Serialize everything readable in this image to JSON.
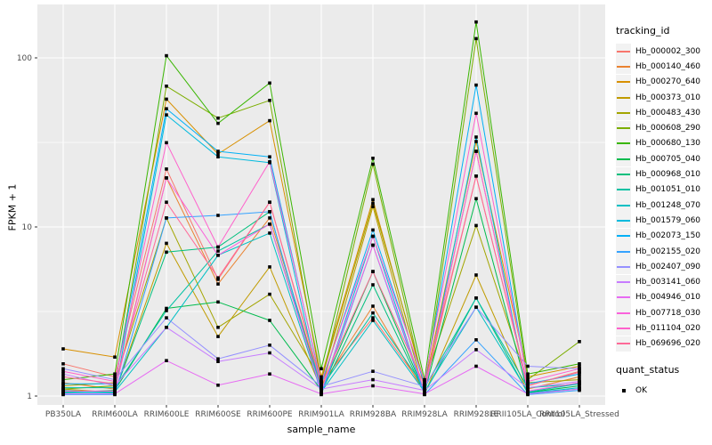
{
  "chart_data": {
    "type": "line",
    "title": "",
    "xlabel": "sample_name",
    "ylabel": "FPKM + 1",
    "y_scale": "log10",
    "y_ticks": [
      1,
      10,
      100
    ],
    "y_minor": [
      3.162,
      31.62
    ],
    "ylim": [
      1,
      195
    ],
    "grid": true,
    "legend_position": "right",
    "legend_title": "tracking_id",
    "panel_bg": "#EBEBEB",
    "grid_color": "#FFFFFF",
    "tick_label_color": "#4D4D4D",
    "point_color": "#000000",
    "point_shape": "square",
    "categories": [
      "PB350LA",
      "RRIM600LA",
      "RRIM600LE",
      "RRIM600SE",
      "RRIM600PE",
      "RRIM901LA",
      "RRIM928BA",
      "RRIM928LA",
      "RRIM928LE",
      "RRII105LA_Control",
      "RRII105LA_Stressed"
    ],
    "series": [
      {
        "name": "Hb_000002_300",
        "color": "#F8766D",
        "values": [
          1.55,
          1.3,
          22,
          4.9,
          14,
          1.2,
          2.9,
          1.1,
          20,
          1.15,
          1.4
        ]
      },
      {
        "name": "Hb_000140_460",
        "color": "#EA8331",
        "values": [
          1.2,
          1.1,
          19.5,
          4.6,
          11.3,
          1.15,
          3.4,
          1.05,
          28,
          1.1,
          1.3
        ]
      },
      {
        "name": "Hb_000270_640",
        "color": "#D89000",
        "values": [
          1.9,
          1.7,
          57,
          27,
          42.5,
          1.3,
          14.5,
          1.15,
          32,
          1.3,
          1.5
        ]
      },
      {
        "name": "Hb_000373_010",
        "color": "#C09B00",
        "values": [
          1.1,
          1.05,
          8.0,
          2.25,
          5.8,
          1.1,
          13.2,
          1.03,
          5.2,
          1.05,
          1.2
        ]
      },
      {
        "name": "Hb_000483_430",
        "color": "#A3A500",
        "values": [
          1.15,
          1.2,
          11.3,
          2.55,
          4.0,
          1.25,
          13.8,
          1.2,
          10.2,
          1.2,
          1.25
        ]
      },
      {
        "name": "Hb_000608_290",
        "color": "#7CAE00",
        "values": [
          1.1,
          1.15,
          68,
          44,
          56,
          1.2,
          23.5,
          1.1,
          130,
          1.25,
          2.1
        ]
      },
      {
        "name": "Hb_000680_130",
        "color": "#39B600",
        "values": [
          1.25,
          1.35,
          103,
          41,
          71,
          1.45,
          25.5,
          1.25,
          163,
          1.35,
          1.55
        ]
      },
      {
        "name": "Hb_000705_040",
        "color": "#00BB4E",
        "values": [
          1.05,
          1.08,
          3.3,
          3.6,
          2.8,
          1.08,
          5.45,
          1.05,
          14.7,
          1.05,
          1.15
        ]
      },
      {
        "name": "Hb_000968_010",
        "color": "#00BF7D",
        "values": [
          1.08,
          1.05,
          7.1,
          7.6,
          12.3,
          1.05,
          4.55,
          1.04,
          3.8,
          1.04,
          1.1
        ]
      },
      {
        "name": "Hb_001051_010",
        "color": "#00C1A3",
        "values": [
          1.12,
          1.12,
          3.2,
          7.2,
          10.4,
          1.12,
          3.1,
          1.12,
          3.8,
          1.12,
          1.18
        ]
      },
      {
        "name": "Hb_001248_070",
        "color": "#00BFC4",
        "values": [
          1.06,
          1.06,
          2.55,
          6.8,
          9.2,
          1.06,
          2.8,
          1.06,
          3.35,
          1.06,
          1.18
        ]
      },
      {
        "name": "Hb_001579_060",
        "color": "#00BADE",
        "values": [
          1.04,
          1.04,
          46,
          26,
          24,
          1.04,
          8.8,
          1.04,
          34,
          1.04,
          1.12
        ]
      },
      {
        "name": "Hb_002073_150",
        "color": "#00B0F6",
        "values": [
          1.18,
          1.18,
          50,
          28,
          26,
          1.18,
          9.6,
          1.18,
          69,
          1.18,
          1.35
        ]
      },
      {
        "name": "Hb_002155_020",
        "color": "#35A2FF",
        "values": [
          1.02,
          1.02,
          11.3,
          11.7,
          12.3,
          1.02,
          7.8,
          1.02,
          2.15,
          1.02,
          1.08
        ]
      },
      {
        "name": "Hb_002407_090",
        "color": "#9590FF",
        "values": [
          1.45,
          1.25,
          2.9,
          1.66,
          2.0,
          1.14,
          1.4,
          1.14,
          3.35,
          1.5,
          1.45
        ]
      },
      {
        "name": "Hb_003141_060",
        "color": "#C77CFF",
        "values": [
          1.35,
          1.15,
          2.55,
          1.6,
          1.8,
          1.1,
          1.25,
          1.08,
          1.88,
          1.12,
          1.22
        ]
      },
      {
        "name": "Hb_004946_010",
        "color": "#E76BF3",
        "values": [
          1.03,
          1.03,
          1.62,
          1.16,
          1.35,
          1.03,
          1.15,
          1.03,
          1.5,
          1.03,
          1.1
        ]
      },
      {
        "name": "Hb_007718_030",
        "color": "#FA62DB",
        "values": [
          1.07,
          1.07,
          19.5,
          6.8,
          10.4,
          1.07,
          7.8,
          1.07,
          28,
          1.07,
          1.2
        ]
      },
      {
        "name": "Hb_011104_020",
        "color": "#FF61CC",
        "values": [
          1.4,
          1.22,
          31.5,
          7.6,
          24.3,
          1.22,
          8.8,
          1.22,
          47,
          1.22,
          1.45
        ]
      },
      {
        "name": "Hb_069696_020",
        "color": "#FF6A98",
        "values": [
          1.3,
          1.18,
          14,
          5.0,
          14,
          1.16,
          5.45,
          1.16,
          20,
          1.16,
          1.38
        ]
      }
    ],
    "quant_legend": {
      "title": "quant_status",
      "items": [
        {
          "label": "OK"
        }
      ]
    }
  }
}
